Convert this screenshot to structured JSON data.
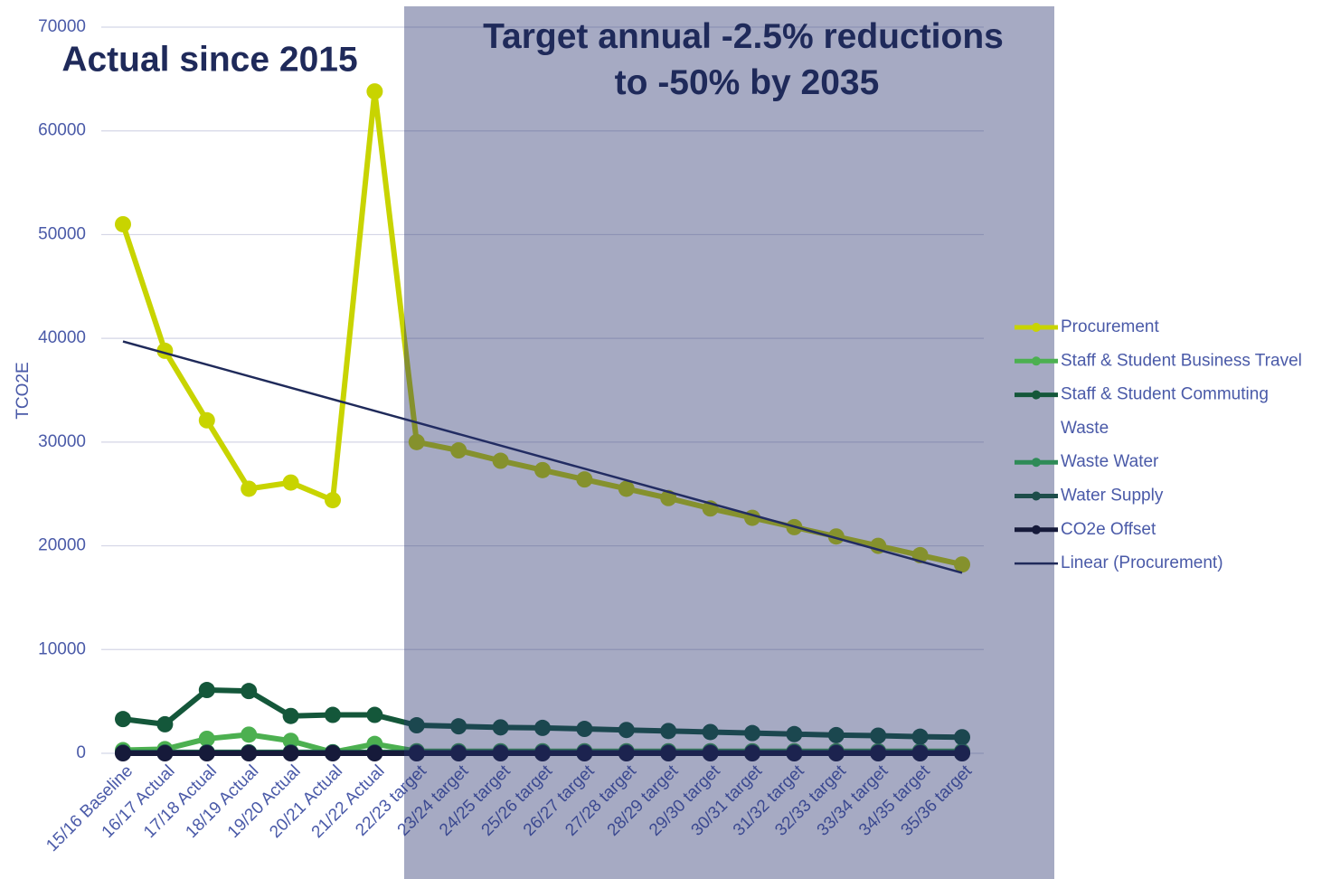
{
  "chart_data": {
    "type": "line",
    "annotations": [
      "Actual since 2015",
      [
        "Target annual -2.5% reductions",
        "to -50% by 2035"
      ]
    ],
    "y_label": "TCO2E",
    "categories": [
      "15/16 Baseline",
      "16/17 Actual",
      "17/18 Actual",
      "18/19 Actual",
      "19/20 Actual",
      "20/21 Actual",
      "21/22 Actual",
      "22/23 target",
      "23/24 target",
      "24/25 target",
      "25/26 target",
      "26/27 target",
      "27/28 target",
      "28/29 target",
      "29/30 target",
      "30/31 target",
      "31/32 target",
      "32/33 target",
      "33/34 target",
      "34/35 target",
      "35/36 target"
    ],
    "series": [
      {
        "name": "Procurement",
        "color": "#c8d400",
        "values": [
          51000,
          38800,
          32100,
          25500,
          26100,
          24400,
          63800,
          30000,
          29200,
          28200,
          27300,
          26400,
          25500,
          24600,
          23600,
          22700,
          21800,
          20900,
          20000,
          19100,
          18200
        ]
      },
      {
        "name": "Staff & Student Business Travel",
        "color": "#4cb050",
        "values": [
          300,
          400,
          1400,
          1800,
          1200,
          100,
          900,
          200,
          200,
          200,
          200,
          200,
          200,
          200,
          200,
          200,
          200,
          200,
          200,
          200,
          200
        ]
      },
      {
        "name": "Staff & Student Commuting",
        "color": "#14573a",
        "values": [
          3300,
          2800,
          6100,
          6000,
          3600,
          3700,
          3700,
          2700,
          2600,
          2500,
          2450,
          2350,
          2250,
          2150,
          2050,
          1950,
          1850,
          1750,
          1700,
          1600,
          1550
        ]
      },
      {
        "name": "Waste",
        "color": "none",
        "values": [
          null,
          null,
          null,
          null,
          null,
          null,
          null,
          null,
          null,
          null,
          null,
          null,
          null,
          null,
          null,
          null,
          null,
          null,
          null,
          null,
          null
        ]
      },
      {
        "name": "Waste  Water",
        "color": "#2e8b57",
        "values": [
          100,
          100,
          100,
          100,
          100,
          100,
          100,
          100,
          100,
          100,
          100,
          100,
          100,
          100,
          100,
          100,
          100,
          100,
          100,
          100,
          100
        ]
      },
      {
        "name": "Water Supply",
        "color": "#1d4d4a",
        "values": [
          50,
          50,
          50,
          50,
          50,
          50,
          50,
          50,
          50,
          50,
          50,
          50,
          50,
          50,
          50,
          50,
          50,
          50,
          50,
          50,
          50
        ]
      },
      {
        "name": "CO2e Offset",
        "color": "#161a3a",
        "values": [
          0,
          0,
          0,
          0,
          0,
          0,
          0,
          0,
          0,
          0,
          0,
          0,
          0,
          0,
          0,
          0,
          0,
          0,
          0,
          0,
          0
        ]
      }
    ],
    "trendline": {
      "name": "Linear (Procurement)",
      "color": "#1f2a5a",
      "start": 39700,
      "end": 17400
    },
    "ylim": [
      0,
      70000
    ],
    "yticks": [
      0,
      10000,
      20000,
      30000,
      40000,
      50000,
      60000,
      70000
    ],
    "grid": true,
    "legend": "right"
  }
}
